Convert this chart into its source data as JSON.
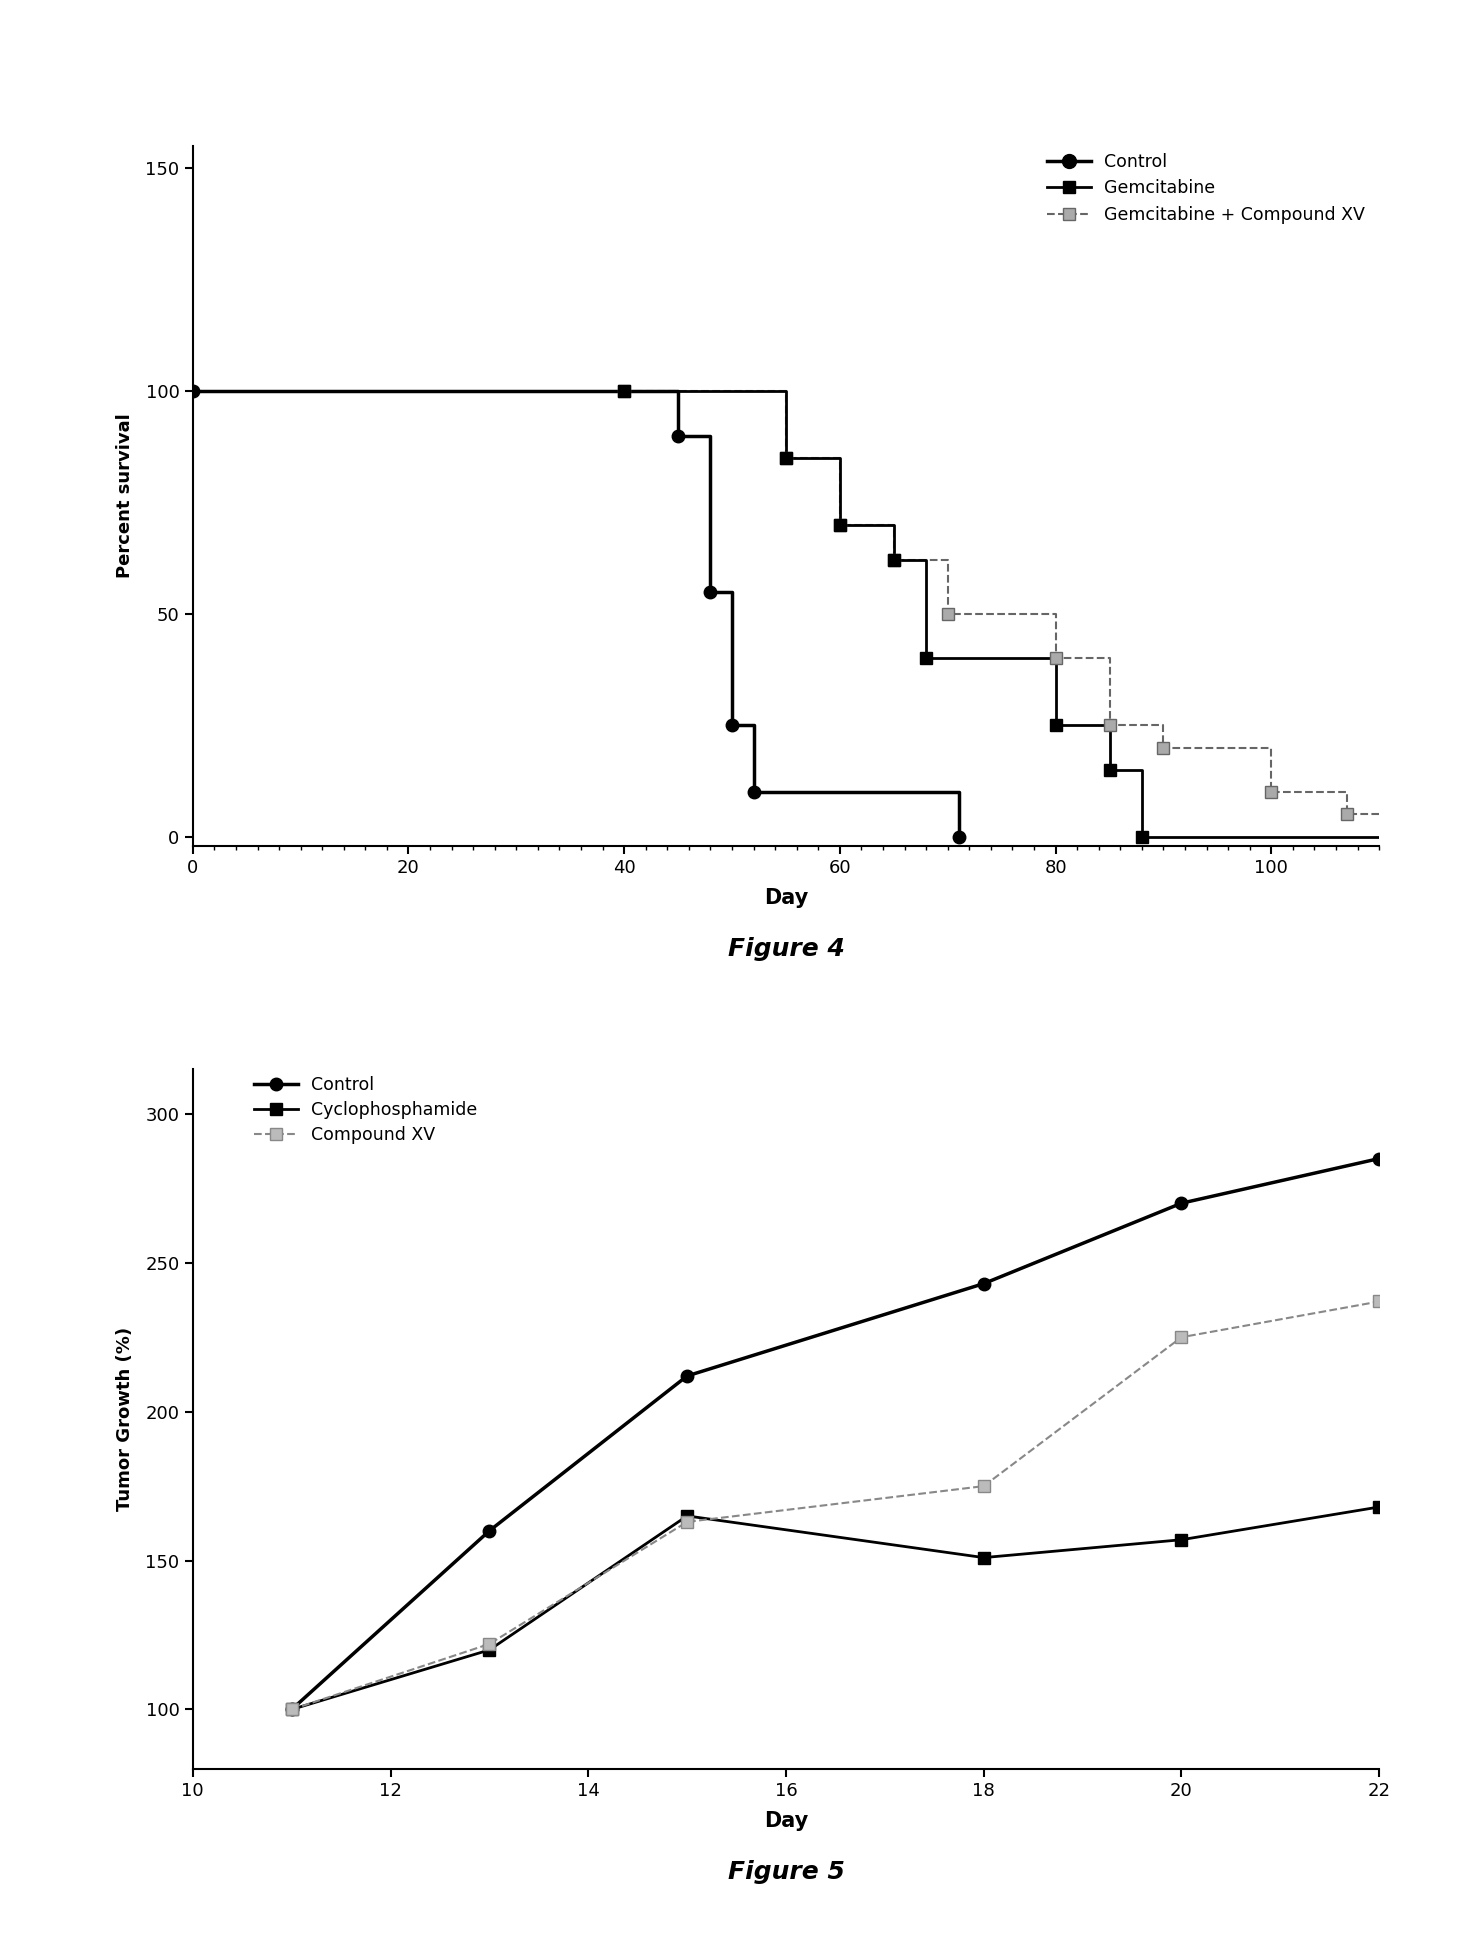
{
  "fig4": {
    "xlabel": "Day",
    "ylabel": "Percent survival",
    "xlim": [
      0,
      110
    ],
    "ylim": [
      -2,
      155
    ],
    "xticks": [
      0,
      20,
      40,
      60,
      80,
      100
    ],
    "yticks": [
      0,
      50,
      100,
      150
    ],
    "figure_label": "Figure 4",
    "control_step_x": [
      0,
      40,
      45,
      48,
      50,
      52,
      71
    ],
    "control_step_y": [
      100,
      100,
      90,
      55,
      25,
      10,
      0
    ],
    "control_marker_x": [
      0,
      45,
      48,
      50,
      52,
      71
    ],
    "control_marker_y": [
      100,
      90,
      55,
      25,
      10,
      0
    ],
    "gem_step_x": [
      40,
      55,
      60,
      65,
      68,
      80,
      85,
      88
    ],
    "gem_step_y": [
      100,
      85,
      70,
      62,
      40,
      25,
      15,
      0
    ],
    "gem_marker_x": [
      40,
      55,
      60,
      65,
      68,
      80,
      85,
      88
    ],
    "gem_marker_y": [
      100,
      85,
      70,
      62,
      40,
      25,
      15,
      0
    ],
    "combo_step_x": [
      40,
      55,
      60,
      65,
      70,
      80,
      85,
      90,
      100,
      107
    ],
    "combo_step_y": [
      100,
      85,
      70,
      62,
      50,
      40,
      25,
      20,
      10,
      5
    ],
    "combo_marker_x": [
      40,
      55,
      60,
      65,
      70,
      80,
      85,
      90,
      100,
      107
    ],
    "combo_marker_y": [
      100,
      85,
      70,
      62,
      50,
      40,
      25,
      20,
      10,
      5
    ]
  },
  "fig5": {
    "xlabel": "Day",
    "ylabel": "Tumor Growth (%)",
    "xlim": [
      10,
      22
    ],
    "ylim": [
      80,
      315
    ],
    "xticks": [
      10,
      12,
      14,
      16,
      18,
      20,
      22
    ],
    "yticks": [
      100,
      150,
      200,
      250,
      300
    ],
    "figure_label": "Figure 5",
    "control_x": [
      11,
      13,
      15,
      18,
      20,
      22
    ],
    "control_y": [
      100,
      160,
      212,
      243,
      270,
      285
    ],
    "cyclo_x": [
      11,
      13,
      15,
      18,
      20,
      22
    ],
    "cyclo_y": [
      100,
      120,
      165,
      151,
      157,
      168
    ],
    "compound_x": [
      11,
      13,
      15,
      18,
      20,
      22
    ],
    "compound_y": [
      100,
      122,
      163,
      175,
      225,
      237
    ]
  }
}
